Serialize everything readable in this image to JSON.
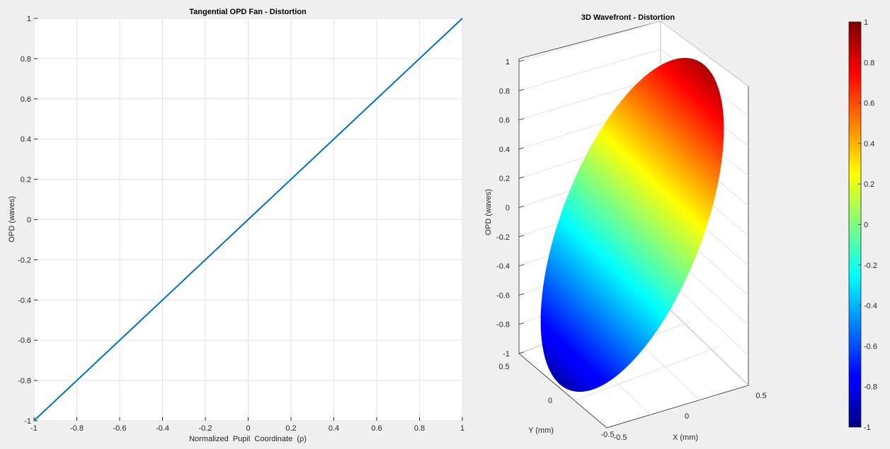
{
  "chart_data": [
    {
      "type": "line",
      "title": "Tangential OPD Fan - Distortion",
      "xlabel": "Normalized  Pupil  Coordinate  (ρ)",
      "ylabel": "OPD (waves)",
      "xlim": [
        -1,
        1
      ],
      "ylim": [
        -1,
        1
      ],
      "grid": true,
      "x_ticks": [
        "-1",
        "-0.8",
        "-0.6",
        "-0.4",
        "-0.2",
        "0",
        "0.2",
        "0.4",
        "0.6",
        "0.8",
        "1"
      ],
      "y_ticks": [
        "1",
        "0.8",
        "0.6",
        "0.4",
        "0.2",
        "0",
        "-0.2",
        "-0.4",
        "-0.6",
        "-0.8",
        "-1"
      ],
      "series": [
        {
          "x": [
            -1,
            -0.5,
            0,
            0.5,
            1
          ],
          "y": [
            -1,
            -0.5,
            0,
            0.5,
            1
          ],
          "color": "#0072BD"
        }
      ]
    },
    {
      "type": "surface",
      "title": "3D Wavefront - Distortion",
      "xlabel": "X (mm)",
      "ylabel": "Y (mm)",
      "zlabel": "OPD (waves)",
      "xlim": [
        -0.5,
        0.5
      ],
      "ylim": [
        -0.5,
        0.5
      ],
      "zlim": [
        -1,
        1
      ],
      "colormap": "jet",
      "x_ticks": [
        "-0.5",
        "0",
        "0.5"
      ],
      "y_ticks": [
        "0.5",
        "0",
        "-0.5"
      ],
      "z_ticks": [
        "1",
        "0.8",
        "0.6",
        "0.4",
        "0.2",
        "0",
        "-0.2",
        "-0.4",
        "-0.6",
        "-0.8",
        "-1"
      ],
      "colorbar_ticks": [
        "1",
        "0.8",
        "0.6",
        "0.4",
        "0.2",
        "0",
        "-0.2",
        "-0.4",
        "-0.6",
        "-0.8",
        "-1"
      ],
      "colorbar_range": [
        -1,
        1
      ]
    }
  ]
}
